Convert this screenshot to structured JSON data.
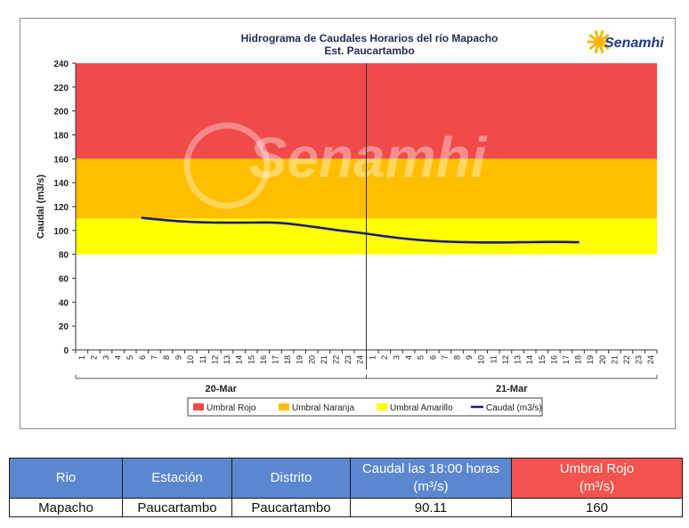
{
  "chart_data": {
    "type": "line",
    "title": "Hidrograma de Caudales Horarios del río Mapacho",
    "subtitle": "Est. Paucartambo",
    "ylabel": "Caudal  (m3/s)",
    "ylim": [
      0,
      240
    ],
    "yticks": [
      0,
      20,
      40,
      60,
      80,
      100,
      120,
      140,
      160,
      180,
      200,
      220,
      240
    ],
    "x_hour_labels": [
      "1",
      "2",
      "3",
      "4",
      "5",
      "6",
      "7",
      "8",
      "9",
      "10",
      "11",
      "12",
      "13",
      "14",
      "15",
      "16",
      "17",
      "18",
      "19",
      "20",
      "21",
      "22",
      "23",
      "24",
      "1",
      "2",
      "3",
      "4",
      "5",
      "6",
      "7",
      "8",
      "9",
      "10",
      "11",
      "12",
      "13",
      "14",
      "15",
      "16",
      "17",
      "18",
      "19",
      "20",
      "21",
      "22",
      "23",
      "24"
    ],
    "day_labels": [
      "20-Mar",
      "21-Mar"
    ],
    "threshold_bands": [
      {
        "name": "Umbral Rojo",
        "from": 160,
        "to": 240,
        "color": "#f04a4a"
      },
      {
        "name": "Umbral Naranja",
        "from": 110,
        "to": 160,
        "color": "#ffbf00"
      },
      {
        "name": "Umbral Amarillo",
        "from": 80,
        "to": 110,
        "color": "#ffff00"
      }
    ],
    "series": [
      {
        "name": "Caudal (m3/s)",
        "color": "#1a1a80",
        "x": [
          6,
          7,
          8,
          9,
          10,
          11,
          12,
          13,
          14,
          15,
          16,
          17,
          18,
          19,
          20,
          21,
          22,
          23,
          24,
          25,
          26,
          27,
          28,
          29,
          30,
          31,
          32,
          33,
          34,
          35,
          36,
          37,
          38,
          39,
          40,
          41,
          42
        ],
        "values": [
          110.5,
          109.5,
          108.6,
          107.8,
          107.2,
          106.8,
          106.6,
          106.5,
          106.5,
          106.6,
          106.7,
          106.5,
          105.8,
          104.6,
          103.2,
          101.8,
          100.4,
          99.2,
          98.0,
          96.6,
          95.2,
          93.9,
          92.8,
          91.9,
          91.2,
          90.7,
          90.3,
          90.1,
          90.0,
          90.0,
          90.0,
          90.1,
          90.2,
          90.3,
          90.4,
          90.3,
          90.11
        ]
      }
    ],
    "legend": [
      "Umbral Rojo",
      "Umbral Naranja",
      "Umbral Amarillo",
      "Caudal (m3/s)"
    ],
    "legend_position": "bottom",
    "grid": false,
    "watermark": "Senamhi",
    "logo": "Senamhi"
  },
  "table": {
    "headers": [
      {
        "line1": "Rio",
        "line2": ""
      },
      {
        "line1": "Estación",
        "line2": ""
      },
      {
        "line1": "Distrito",
        "line2": ""
      },
      {
        "line1": "Caudal las 18:00 horas",
        "line2": "(m³/s)"
      },
      {
        "line1": "Umbral Rojo",
        "line2": "(m³/s)"
      }
    ],
    "row": [
      "Mapacho",
      "Paucartambo",
      "Paucartambo",
      "90.11",
      "160"
    ]
  }
}
